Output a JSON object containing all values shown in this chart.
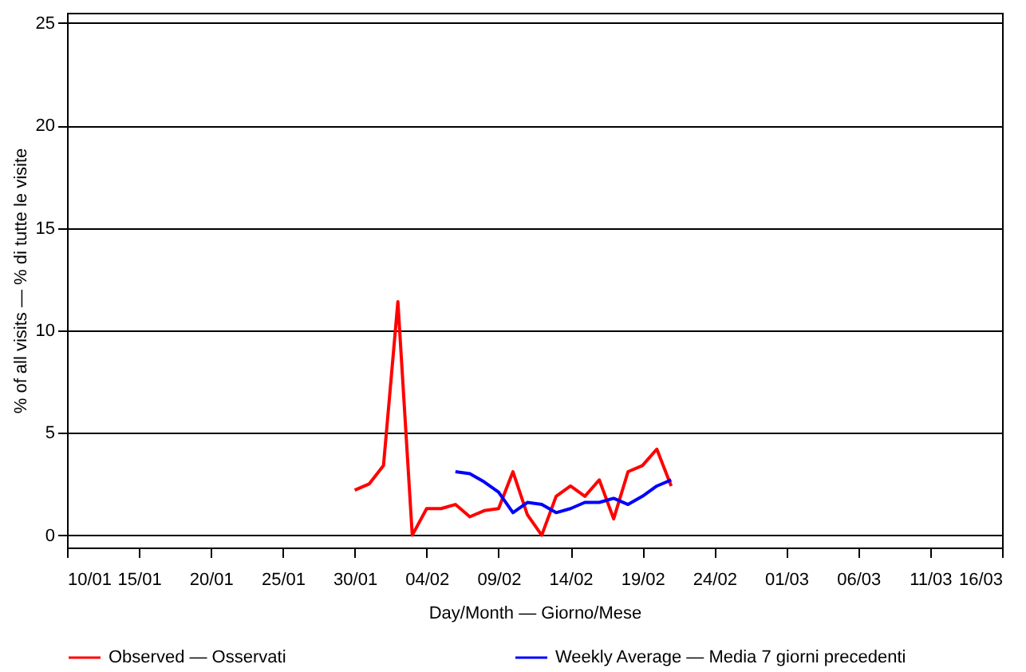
{
  "chart_data": {
    "type": "line",
    "xlabel": "Day/Month — Giorno/Mese",
    "ylabel": "% of all visits — % di tutte le visite",
    "xlim": [
      "--01-10",
      "--03-16"
    ],
    "xticks": [
      {
        "value": "--01-10",
        "label": "10/01"
      },
      {
        "value": "--01-15",
        "label": "15/01"
      },
      {
        "value": "--01-20",
        "label": "20/01"
      },
      {
        "value": "--01-25",
        "label": "25/01"
      },
      {
        "value": "--01-30",
        "label": "30/01"
      },
      {
        "value": "--02-04",
        "label": "04/02"
      },
      {
        "value": "--02-09",
        "label": "09/02"
      },
      {
        "value": "--02-14",
        "label": "14/02"
      },
      {
        "value": "--02-19",
        "label": "19/02"
      },
      {
        "value": "--02-24",
        "label": "24/02"
      },
      {
        "value": "--03-01",
        "label": "01/03"
      },
      {
        "value": "--03-06",
        "label": "06/03"
      },
      {
        "value": "--03-11",
        "label": "11/03"
      },
      {
        "value": "--03-16",
        "label": "16/03"
      }
    ],
    "ylim": [
      -0.6,
      25.5
    ],
    "yticks": [
      0,
      5,
      10,
      15,
      20,
      25
    ],
    "grid": "y",
    "legend": "bottom",
    "marker": "none",
    "line_style": "solid",
    "series": [
      {
        "name": "Observed — Osservati",
        "color": "#ff0000",
        "x": [
          "--01-30",
          "--01-31",
          "--02-01",
          "--02-02",
          "--02-03",
          "--02-04",
          "--02-05",
          "--02-06",
          "--02-07",
          "--02-08",
          "--02-09",
          "--02-10",
          "--02-11",
          "--02-12",
          "--02-13",
          "--02-14",
          "--02-15",
          "--02-16",
          "--02-17",
          "--02-18",
          "--02-19",
          "--02-20",
          "--02-21"
        ],
        "values": [
          2.2,
          2.5,
          3.4,
          11.4,
          0,
          1.3,
          1.3,
          1.5,
          0.9,
          1.2,
          1.3,
          3.1,
          1.0,
          0,
          1.9,
          2.4,
          1.9,
          2.7,
          0.8,
          3.1,
          3.4,
          4.2,
          2.4
        ]
      },
      {
        "name": "Weekly Average — Media 7 giorni precedenti",
        "color": "#0000ff",
        "x": [
          "--02-06",
          "--02-07",
          "--02-08",
          "--02-09",
          "--02-10",
          "--02-11",
          "--02-12",
          "--02-13",
          "--02-14",
          "--02-15",
          "--02-16",
          "--02-17",
          "--02-18",
          "--02-19",
          "--02-20",
          "--02-21"
        ],
        "values": [
          3.1,
          3.0,
          2.6,
          2.1,
          1.1,
          1.6,
          1.5,
          1.1,
          1.3,
          1.6,
          1.6,
          1.8,
          1.5,
          1.9,
          2.4,
          2.7
        ]
      }
    ]
  }
}
